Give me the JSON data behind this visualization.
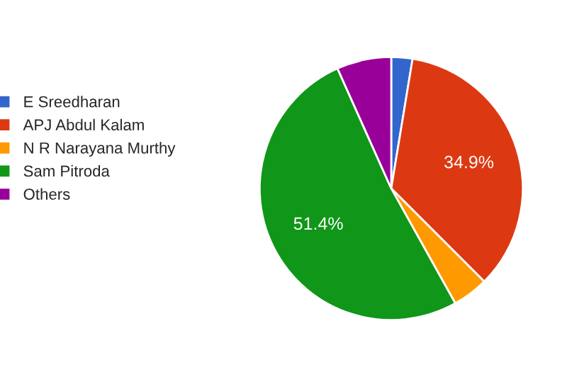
{
  "chart_data": {
    "type": "pie",
    "categories": [
      "E Sreedharan",
      "APJ Abdul Kalam",
      "N R Narayana Murthy",
      "Sam Pitroda",
      "Others"
    ],
    "values": [
      2.6,
      34.9,
      4.4,
      51.4,
      6.7
    ],
    "colors": [
      "#3366cc",
      "#dc3912",
      "#ff9900",
      "#109618",
      "#990099"
    ],
    "value_labels": [
      null,
      "34.9%",
      null,
      "51.4%",
      null
    ],
    "legend": "left"
  }
}
